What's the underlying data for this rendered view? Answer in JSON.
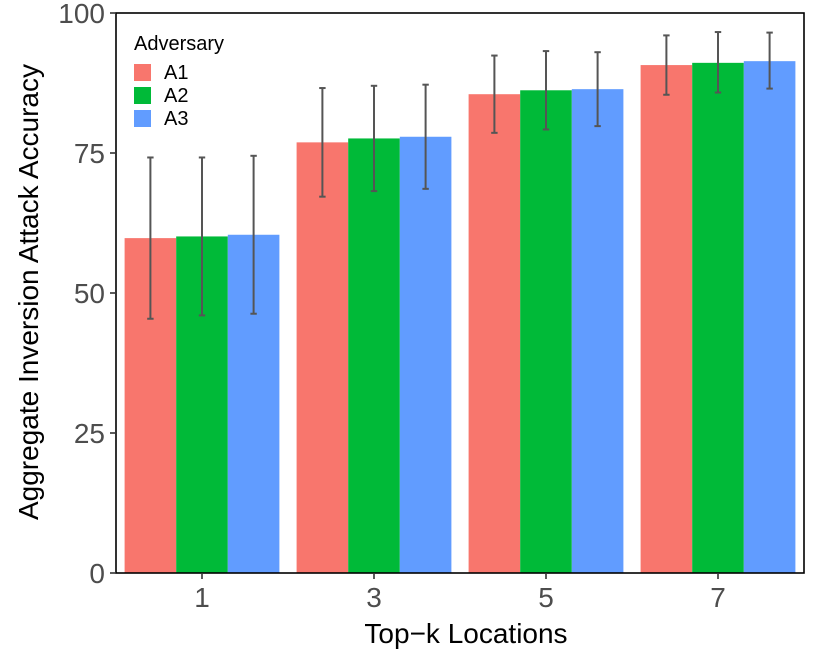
{
  "chart_data": {
    "type": "bar",
    "title": "",
    "xlabel": "Top−k Locations",
    "ylabel": "Aggregate Inversion Attack Accuracy",
    "categories": [
      "1",
      "3",
      "5",
      "7"
    ],
    "ylim": [
      0,
      100
    ],
    "yticks": [
      "0",
      "25",
      "50",
      "75",
      "100"
    ],
    "grid": false,
    "legend": {
      "title": "Adversary",
      "position": "top-left"
    },
    "series": [
      {
        "name": "A1",
        "color": "#F8766D",
        "values": [
          59.8,
          76.9,
          85.5,
          90.7
        ],
        "error_low": [
          45.4,
          67.2,
          78.6,
          85.4
        ],
        "error_high": [
          74.2,
          86.6,
          92.4,
          96.0
        ]
      },
      {
        "name": "A2",
        "color": "#00BA38",
        "values": [
          60.1,
          77.6,
          86.2,
          91.1
        ],
        "error_low": [
          46.0,
          68.2,
          79.2,
          85.8
        ],
        "error_high": [
          74.2,
          87.0,
          93.2,
          96.6
        ]
      },
      {
        "name": "A3",
        "color": "#619CFF",
        "values": [
          60.4,
          77.9,
          86.4,
          91.4
        ],
        "error_low": [
          46.3,
          68.6,
          79.8,
          86.5
        ],
        "error_high": [
          74.5,
          87.2,
          93.0,
          96.5
        ]
      }
    ]
  }
}
